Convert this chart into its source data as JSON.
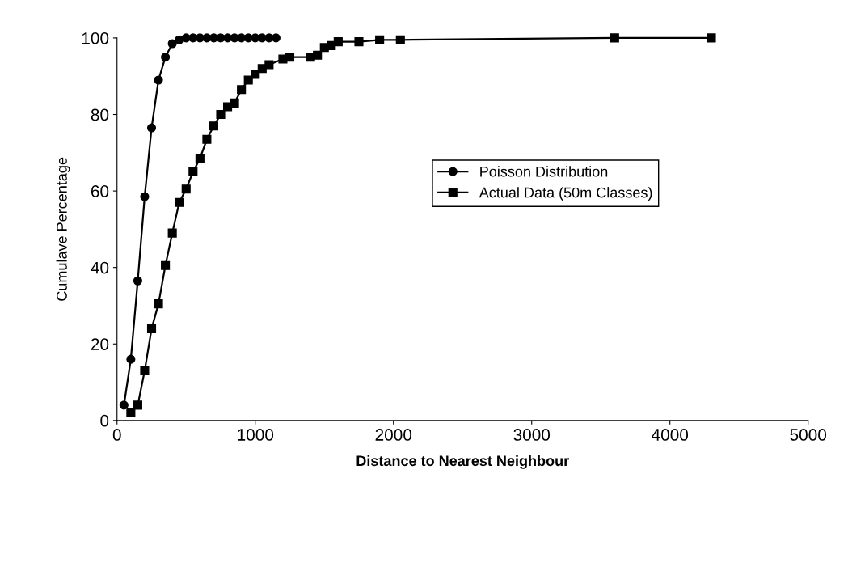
{
  "chart_data": {
    "type": "line",
    "xlabel": "Distance to Nearest Neighbour",
    "ylabel": "Cumulave Percentage",
    "xlim": [
      0,
      5000
    ],
    "xticks": [
      0,
      1000,
      2000,
      3000,
      4000,
      5000
    ],
    "ylim": [
      0,
      100
    ],
    "yticks": [
      0,
      20,
      40,
      60,
      80,
      100
    ],
    "grid": false,
    "legend": "center",
    "line_style": "solid",
    "series": [
      {
        "name": "Poisson Distribution",
        "color": "#000000",
        "marker": "circle",
        "x": [
          50,
          100,
          150,
          200,
          250,
          300,
          350,
          400,
          450,
          500,
          550,
          600,
          650,
          700,
          750,
          800,
          850,
          900,
          950,
          1000,
          1050,
          1100,
          1150
        ],
        "values": [
          4,
          16,
          36.5,
          58.5,
          76.5,
          89,
          95,
          98.5,
          99.5,
          100,
          100,
          100,
          100,
          100,
          100,
          100,
          100,
          100,
          100,
          100,
          100,
          100,
          100
        ]
      },
      {
        "name": "Actual Data (50m Classes)",
        "color": "#000000",
        "marker": "square",
        "x": [
          100,
          150,
          200,
          250,
          300,
          350,
          400,
          450,
          500,
          550,
          600,
          650,
          700,
          750,
          800,
          850,
          900,
          950,
          1000,
          1050,
          1100,
          1200,
          1250,
          1400,
          1450,
          1500,
          1550,
          1600,
          1750,
          1900,
          2050,
          3600,
          4300
        ],
        "values": [
          2,
          4,
          13,
          24,
          30.5,
          40.5,
          49,
          57,
          60.5,
          65,
          68.5,
          73.5,
          77,
          80,
          82,
          83,
          86.5,
          89,
          90.5,
          92,
          93,
          94.5,
          95,
          95,
          95.5,
          97.5,
          98,
          99,
          99,
          99.5,
          99.5,
          100,
          100
        ]
      }
    ]
  }
}
